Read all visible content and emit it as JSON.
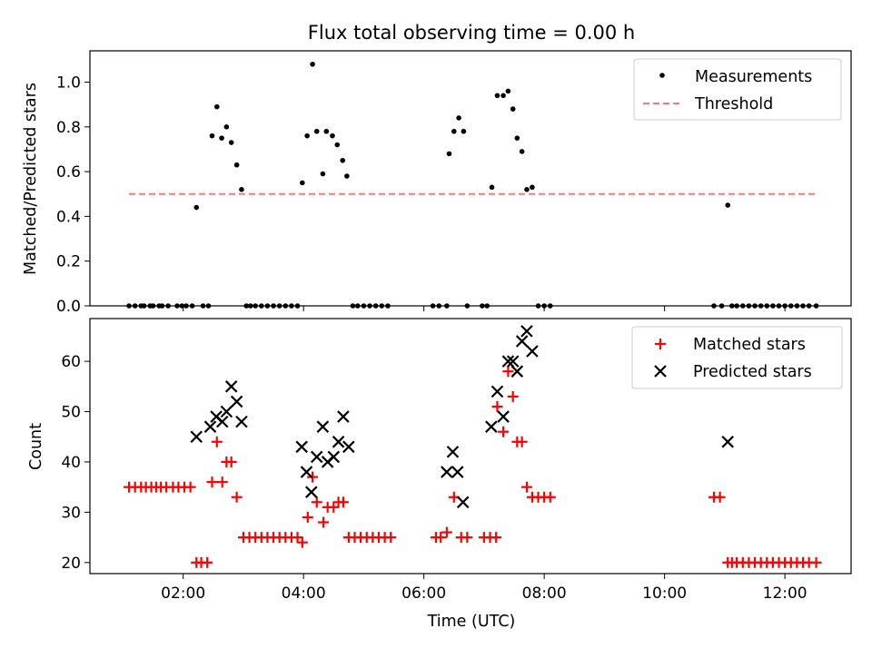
{
  "chart_data": [
    {
      "type": "scatter",
      "title": "Flux total observing time = 0.00 h",
      "xlabel": "",
      "ylabel": "Matched/Predicted stars",
      "xunit": "hours UTC",
      "xlim": [
        0.45,
        13.1
      ],
      "ylim": [
        0,
        1.14
      ],
      "yticks": [
        "0.0",
        "0.2",
        "0.4",
        "0.6",
        "0.8",
        "1.0"
      ],
      "grid": false,
      "legend_position": "top-right",
      "series": [
        {
          "name": "Measurements",
          "marker": "dot",
          "color": "#000000",
          "points": [
            [
              1.1,
              0
            ],
            [
              1.2,
              0
            ],
            [
              1.3,
              0
            ],
            [
              1.35,
              0
            ],
            [
              1.45,
              0
            ],
            [
              1.5,
              0
            ],
            [
              1.6,
              0
            ],
            [
              1.65,
              0
            ],
            [
              1.75,
              0
            ],
            [
              1.9,
              0
            ],
            [
              1.98,
              0
            ],
            [
              2.05,
              0
            ],
            [
              2.15,
              0
            ],
            [
              2.22,
              0.44
            ],
            [
              2.33,
              0
            ],
            [
              2.42,
              0
            ],
            [
              2.48,
              0.76
            ],
            [
              2.56,
              0.89
            ],
            [
              2.64,
              0.75
            ],
            [
              2.72,
              0.8
            ],
            [
              2.8,
              0.73
            ],
            [
              2.89,
              0.63
            ],
            [
              2.97,
              0.52
            ],
            [
              3.05,
              0
            ],
            [
              3.12,
              0
            ],
            [
              3.2,
              0
            ],
            [
              3.3,
              0
            ],
            [
              3.4,
              0
            ],
            [
              3.5,
              0
            ],
            [
              3.6,
              0
            ],
            [
              3.7,
              0
            ],
            [
              3.8,
              0
            ],
            [
              3.9,
              0
            ],
            [
              3.98,
              0.55
            ],
            [
              4.06,
              0.76
            ],
            [
              4.15,
              1.08
            ],
            [
              4.22,
              0.78
            ],
            [
              4.32,
              0.59
            ],
            [
              4.38,
              0.78
            ],
            [
              4.48,
              0.76
            ],
            [
              4.56,
              0.72
            ],
            [
              4.65,
              0.65
            ],
            [
              4.72,
              0.58
            ],
            [
              4.82,
              0
            ],
            [
              4.9,
              0
            ],
            [
              5.0,
              0
            ],
            [
              5.1,
              0
            ],
            [
              5.2,
              0
            ],
            [
              5.3,
              0
            ],
            [
              5.4,
              0
            ],
            [
              6.15,
              0
            ],
            [
              6.25,
              0
            ],
            [
              6.38,
              0
            ],
            [
              6.42,
              0.68
            ],
            [
              6.5,
              0.78
            ],
            [
              6.58,
              0.84
            ],
            [
              6.66,
              0.78
            ],
            [
              6.72,
              0
            ],
            [
              6.97,
              0
            ],
            [
              7.05,
              0
            ],
            [
              7.13,
              0.53
            ],
            [
              7.22,
              0.94
            ],
            [
              7.32,
              0.94
            ],
            [
              7.4,
              0.96
            ],
            [
              7.48,
              0.88
            ],
            [
              7.55,
              0.75
            ],
            [
              7.63,
              0.69
            ],
            [
              7.71,
              0.52
            ],
            [
              7.8,
              0.53
            ],
            [
              7.9,
              0
            ],
            [
              8.0,
              0
            ],
            [
              8.1,
              0
            ],
            [
              10.82,
              0
            ],
            [
              10.95,
              0
            ],
            [
              11.05,
              0.45
            ],
            [
              11.12,
              0
            ],
            [
              11.2,
              0
            ],
            [
              11.3,
              0
            ],
            [
              11.4,
              0
            ],
            [
              11.5,
              0
            ],
            [
              11.6,
              0
            ],
            [
              11.7,
              0
            ],
            [
              11.8,
              0
            ],
            [
              11.9,
              0
            ],
            [
              12.0,
              0
            ],
            [
              12.1,
              0
            ],
            [
              12.2,
              0
            ],
            [
              12.3,
              0
            ],
            [
              12.4,
              0
            ],
            [
              12.52,
              0
            ]
          ]
        },
        {
          "name": "Threshold",
          "style": "dashed-line",
          "color": "#ff7777",
          "points": [
            [
              1.1,
              0.5
            ],
            [
              12.52,
              0.5
            ]
          ]
        }
      ]
    },
    {
      "type": "scatter",
      "title": "",
      "xlabel": "Time (UTC)",
      "ylabel": "Count",
      "xunit": "hours UTC",
      "xlim": [
        0.45,
        13.1
      ],
      "ylim": [
        17.8,
        68.5
      ],
      "xticks": [
        "02:00",
        "04:00",
        "06:00",
        "08:00",
        "10:00",
        "12:00"
      ],
      "yticks": [
        "20",
        "30",
        "40",
        "50",
        "60"
      ],
      "grid": false,
      "legend_position": "top-right",
      "series": [
        {
          "name": "Matched stars",
          "marker": "plus",
          "color": "#ff0000",
          "points": [
            [
              1.1,
              35
            ],
            [
              1.2,
              35
            ],
            [
              1.3,
              35
            ],
            [
              1.38,
              35
            ],
            [
              1.47,
              35
            ],
            [
              1.55,
              35
            ],
            [
              1.63,
              35
            ],
            [
              1.72,
              35
            ],
            [
              1.83,
              35
            ],
            [
              1.92,
              35
            ],
            [
              2.02,
              35
            ],
            [
              2.12,
              35
            ],
            [
              2.22,
              20
            ],
            [
              2.3,
              20
            ],
            [
              2.4,
              20
            ],
            [
              2.48,
              36
            ],
            [
              2.56,
              44
            ],
            [
              2.65,
              36
            ],
            [
              2.72,
              40
            ],
            [
              2.8,
              40
            ],
            [
              2.89,
              33
            ],
            [
              3.0,
              25
            ],
            [
              3.1,
              25
            ],
            [
              3.2,
              25
            ],
            [
              3.3,
              25
            ],
            [
              3.4,
              25
            ],
            [
              3.5,
              25
            ],
            [
              3.6,
              25
            ],
            [
              3.7,
              25
            ],
            [
              3.8,
              25
            ],
            [
              3.9,
              25
            ],
            [
              3.98,
              24
            ],
            [
              4.07,
              29
            ],
            [
              4.15,
              37
            ],
            [
              4.22,
              32
            ],
            [
              4.33,
              28
            ],
            [
              4.4,
              31
            ],
            [
              4.5,
              31
            ],
            [
              4.58,
              32
            ],
            [
              4.66,
              32
            ],
            [
              4.75,
              25
            ],
            [
              4.85,
              25
            ],
            [
              4.95,
              25
            ],
            [
              5.05,
              25
            ],
            [
              5.15,
              25
            ],
            [
              5.25,
              25
            ],
            [
              5.35,
              25
            ],
            [
              5.45,
              25
            ],
            [
              6.2,
              25
            ],
            [
              6.28,
              25
            ],
            [
              6.38,
              26
            ],
            [
              6.5,
              33
            ],
            [
              6.62,
              25
            ],
            [
              6.72,
              25
            ],
            [
              7.0,
              25
            ],
            [
              7.1,
              25
            ],
            [
              7.2,
              25
            ],
            [
              7.22,
              51
            ],
            [
              7.32,
              46
            ],
            [
              7.4,
              58
            ],
            [
              7.48,
              53
            ],
            [
              7.55,
              44
            ],
            [
              7.63,
              44
            ],
            [
              7.71,
              35
            ],
            [
              7.8,
              33
            ],
            [
              7.9,
              33
            ],
            [
              8.0,
              33
            ],
            [
              8.1,
              33
            ],
            [
              10.82,
              33
            ],
            [
              10.92,
              33
            ],
            [
              11.05,
              20
            ],
            [
              11.12,
              20
            ],
            [
              11.2,
              20
            ],
            [
              11.3,
              20
            ],
            [
              11.4,
              20
            ],
            [
              11.5,
              20
            ],
            [
              11.6,
              20
            ],
            [
              11.7,
              20
            ],
            [
              11.8,
              20
            ],
            [
              11.9,
              20
            ],
            [
              12.0,
              20
            ],
            [
              12.1,
              20
            ],
            [
              12.2,
              20
            ],
            [
              12.3,
              20
            ],
            [
              12.4,
              20
            ],
            [
              12.52,
              20
            ]
          ]
        },
        {
          "name": "Predicted stars",
          "marker": "x",
          "color": "#000000",
          "points": [
            [
              2.22,
              45
            ],
            [
              2.45,
              47
            ],
            [
              2.55,
              49
            ],
            [
              2.65,
              48
            ],
            [
              2.72,
              50
            ],
            [
              2.8,
              55
            ],
            [
              2.89,
              52
            ],
            [
              2.97,
              48
            ],
            [
              3.97,
              43
            ],
            [
              4.05,
              38
            ],
            [
              4.13,
              34
            ],
            [
              4.22,
              41
            ],
            [
              4.32,
              47
            ],
            [
              4.4,
              40
            ],
            [
              4.5,
              41
            ],
            [
              4.58,
              44
            ],
            [
              4.66,
              49
            ],
            [
              4.75,
              43
            ],
            [
              6.38,
              38
            ],
            [
              6.48,
              42
            ],
            [
              6.56,
              38
            ],
            [
              6.65,
              32
            ],
            [
              7.12,
              47
            ],
            [
              7.22,
              54
            ],
            [
              7.32,
              49
            ],
            [
              7.4,
              60
            ],
            [
              7.48,
              60
            ],
            [
              7.55,
              58
            ],
            [
              7.63,
              64
            ],
            [
              7.71,
              66
            ],
            [
              7.8,
              62
            ],
            [
              11.05,
              44
            ]
          ]
        }
      ]
    }
  ]
}
